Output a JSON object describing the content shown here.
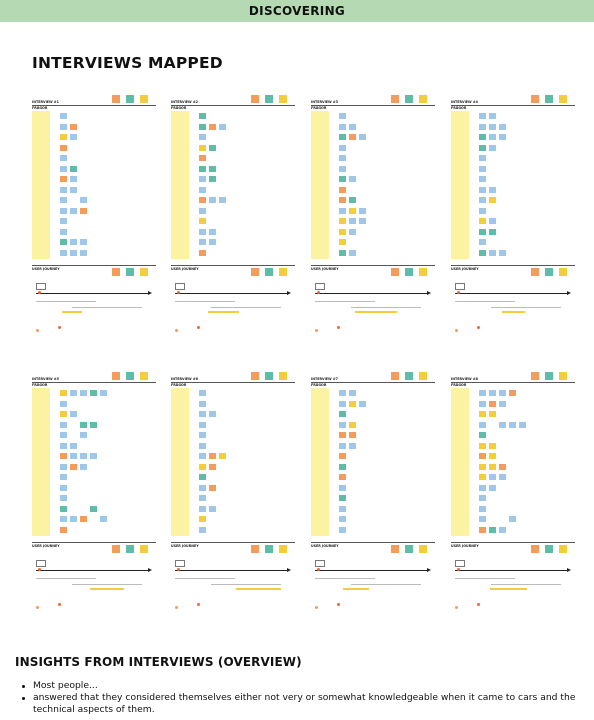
{
  "banner": {
    "title": "DISCOVERING",
    "color": "#b5d9b2"
  },
  "section": {
    "title": "INTERVIEWS MAPPED"
  },
  "boards": [
    {
      "title": "INTERVIEW #1",
      "subtitle": "FRÅGOR",
      "journey_label": "USER JOURNEY"
    },
    {
      "title": "INTERVIEW #2",
      "subtitle": "FRÅGOR",
      "journey_label": "USER JOURNEY"
    },
    {
      "title": "INTERVIEW #3",
      "subtitle": "FRÅGOR",
      "journey_label": "USER JOURNEY"
    },
    {
      "title": "INTERVIEW #4",
      "subtitle": "FRÅGOR",
      "journey_label": "USER JOURNEY"
    },
    {
      "title": "INTERVIEW #5",
      "subtitle": "FRÅGOR",
      "journey_label": "USER JOURNEY"
    },
    {
      "title": "INTERVIEW #6",
      "subtitle": "FRÅGOR",
      "journey_label": "USER JOURNEY"
    },
    {
      "title": "INTERVIEW #7",
      "subtitle": "FRÅGOR",
      "journey_label": "USER JOURNEY"
    },
    {
      "title": "INTERVIEW #8",
      "subtitle": "FRÅGOR",
      "journey_label": "USER JOURNEY"
    }
  ],
  "note_colors": {
    "blue": "#9fc7ea",
    "orange": "#f49c5b",
    "yellow": "#f4cd3c",
    "teal": "#5fbca8",
    "question_yellow": "#fbf3a2"
  },
  "insights": {
    "title": "INSIGHTS FROM INTERVIEWS (OVERVIEW)",
    "items": [
      "Most people...",
      "answered that they considered themselves either not very or somewhat knowledgeable when it came to cars and the technical aspects of them."
    ]
  }
}
